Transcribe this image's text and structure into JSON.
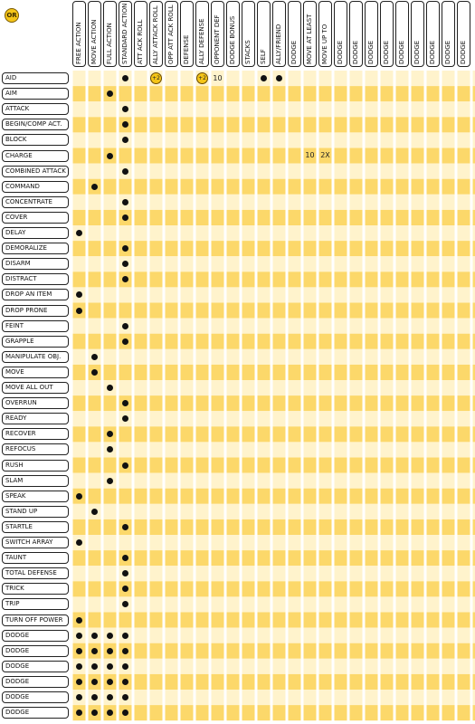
{
  "corner_badge": "OR",
  "colors": {
    "stripe_yellow": "#fcd86a",
    "stripe_light": "#fff3cc",
    "ink": "#111111",
    "badge": "#f5c518"
  },
  "columns": [
    "FREE ACTION",
    "MOVE ACTION",
    "FULL ACTION",
    "STANDARD ACTION",
    "ATT ACK ROLL",
    "ALLY ATTACK ROLL",
    "OPP ATT ACK ROLL",
    "DEFENSE",
    "ALLY DEFENSE",
    "OPPONENT DEF",
    "DODGE BONUS",
    "STACKS",
    "SELF",
    "ALLY/FRIEND",
    "DODGE",
    "MOVE AT LEAST",
    "MOVE UP TO",
    "DODGE",
    "DODGE",
    "DODGE",
    "DODGE",
    "DODGE",
    "DODGE",
    "DODGE",
    "DODGE",
    "DODGE"
  ],
  "rows": [
    {
      "label": "AID",
      "dots": [
        3,
        12,
        13
      ],
      "badges": [
        {
          "col": 5,
          "text": "+2"
        },
        {
          "col": 8,
          "text": "+2"
        }
      ],
      "texts": [
        {
          "col": 9,
          "text": "10"
        }
      ]
    },
    {
      "label": "AIM",
      "dots": [
        2
      ]
    },
    {
      "label": "ATTACK",
      "dots": [
        3
      ]
    },
    {
      "label": "BEGIN/COMP ACT.",
      "dots": [
        3
      ]
    },
    {
      "label": "BLOCK",
      "dots": [
        3
      ]
    },
    {
      "label": "CHARGE",
      "dots": [
        2
      ],
      "texts": [
        {
          "col": 15,
          "text": "10"
        },
        {
          "col": 16,
          "text": "2X"
        }
      ]
    },
    {
      "label": "COMBINED ATTACK",
      "dots": [
        3
      ]
    },
    {
      "label": "COMMAND",
      "dots": [
        1
      ]
    },
    {
      "label": "CONCENTRATE",
      "dots": [
        3
      ]
    },
    {
      "label": "COVER",
      "dots": [
        3
      ]
    },
    {
      "label": "DELAY",
      "dots": [
        0
      ]
    },
    {
      "label": "DEMORALIZE",
      "dots": [
        3
      ]
    },
    {
      "label": "DISARM",
      "dots": [
        3
      ]
    },
    {
      "label": "DISTRACT",
      "dots": [
        3
      ]
    },
    {
      "label": "DROP AN ITEM",
      "dots": [
        0
      ]
    },
    {
      "label": "DROP PRONE",
      "dots": [
        0
      ]
    },
    {
      "label": "FEINT",
      "dots": [
        3
      ]
    },
    {
      "label": "GRAPPLE",
      "dots": [
        3
      ]
    },
    {
      "label": "MANIPULATE OBJ.",
      "dots": [
        1
      ]
    },
    {
      "label": "MOVE",
      "dots": [
        1
      ]
    },
    {
      "label": "MOVE ALL OUT",
      "dots": [
        2
      ]
    },
    {
      "label": "OVERRUN",
      "dots": [
        3
      ]
    },
    {
      "label": "READY",
      "dots": [
        3
      ]
    },
    {
      "label": "RECOVER",
      "dots": [
        2
      ]
    },
    {
      "label": "REFOCUS",
      "dots": [
        2
      ]
    },
    {
      "label": "RUSH",
      "dots": [
        3
      ]
    },
    {
      "label": "SLAM",
      "dots": [
        2
      ]
    },
    {
      "label": "SPEAK",
      "dots": [
        0
      ]
    },
    {
      "label": "STAND UP",
      "dots": [
        1
      ]
    },
    {
      "label": "STARTLE",
      "dots": [
        3
      ]
    },
    {
      "label": "SWITCH ARRAY",
      "dots": [
        0
      ]
    },
    {
      "label": "TAUNT",
      "dots": [
        3
      ]
    },
    {
      "label": "TOTAL DEFENSE",
      "dots": [
        3
      ]
    },
    {
      "label": "TRICK",
      "dots": [
        3
      ]
    },
    {
      "label": "TRIP",
      "dots": [
        3
      ]
    },
    {
      "label": "TURN OFF POWER",
      "dots": [
        0
      ]
    },
    {
      "label": "DODGE",
      "dots": [
        0,
        1,
        2,
        3
      ]
    },
    {
      "label": "DODGE",
      "dots": [
        0,
        1,
        2,
        3
      ]
    },
    {
      "label": "DODGE",
      "dots": [
        0,
        1,
        2,
        3
      ]
    },
    {
      "label": "DODGE",
      "dots": [
        0,
        1,
        2,
        3
      ]
    },
    {
      "label": "DODGE",
      "dots": [
        0,
        1,
        2,
        3
      ]
    },
    {
      "label": "DODGE",
      "dots": [
        0,
        1,
        2,
        3
      ]
    }
  ]
}
